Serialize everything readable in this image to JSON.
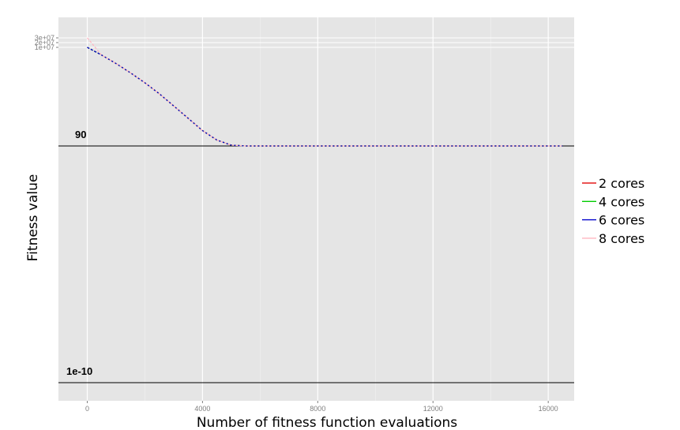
{
  "chart_data": {
    "type": "line",
    "title": "",
    "xlabel": "Number of fitness function evaluations",
    "ylabel": "Fitness value",
    "xlim": [
      -1000,
      16900
    ],
    "x_ticks": [
      0,
      4000,
      8000,
      12000,
      16000
    ],
    "x_tick_labels": [
      "0",
      "4000",
      "8000",
      "12000",
      "16000"
    ],
    "y_tick_labels": [
      "3e+07",
      "2e+07",
      "1e+07"
    ],
    "y_scale": "compressed/stacked (top tick labels overlap)",
    "grid": true,
    "legend_position": "right",
    "reference_lines": [
      {
        "label": "90",
        "y": 90
      },
      {
        "label": "1e-10",
        "y": 1e-10
      }
    ],
    "series": [
      {
        "name": "2 cores",
        "color": "#e41a1c",
        "x": [
          0,
          500,
          1000,
          1500,
          2000,
          2500,
          3000,
          3500,
          4000,
          4500,
          5000,
          5500,
          16500
        ],
        "y": [
          10000000,
          5500000,
          2800000,
          1300000,
          550000,
          200000,
          60000,
          15000,
          3000,
          600,
          150,
          90,
          90
        ]
      },
      {
        "name": "4 cores",
        "color": "#00cc00",
        "x": [
          0,
          500,
          1000,
          1500,
          2000,
          2500,
          3000,
          3500,
          4000,
          4500,
          5000,
          5500,
          16500
        ],
        "y": [
          10000000,
          5500000,
          2800000,
          1300000,
          550000,
          200000,
          60000,
          15000,
          3000,
          600,
          150,
          90,
          90
        ]
      },
      {
        "name": "6 cores",
        "color": "#0000cc",
        "x": [
          0,
          500,
          1000,
          1500,
          2000,
          2500,
          3000,
          3500,
          4000,
          4500,
          5000,
          5500,
          16500
        ],
        "y": [
          10000000,
          5500000,
          2800000,
          1300000,
          550000,
          200000,
          60000,
          15000,
          3000,
          600,
          150,
          90,
          90
        ]
      },
      {
        "name": "8 cores",
        "color": "#ffb6c1",
        "x": [
          0,
          500,
          1000,
          1500,
          2000,
          2500,
          3000,
          3500,
          4000,
          4500,
          5000,
          5500,
          16500
        ],
        "y": [
          30000000,
          5500000,
          2800000,
          1300000,
          550000,
          200000,
          60000,
          15000,
          3000,
          600,
          150,
          90,
          90
        ]
      }
    ]
  },
  "colors": {
    "panel_background": "#e5e5e5",
    "grid_major": "#ffffff",
    "grid_minor": "#f2f2f2",
    "reference_line": "#000000"
  }
}
